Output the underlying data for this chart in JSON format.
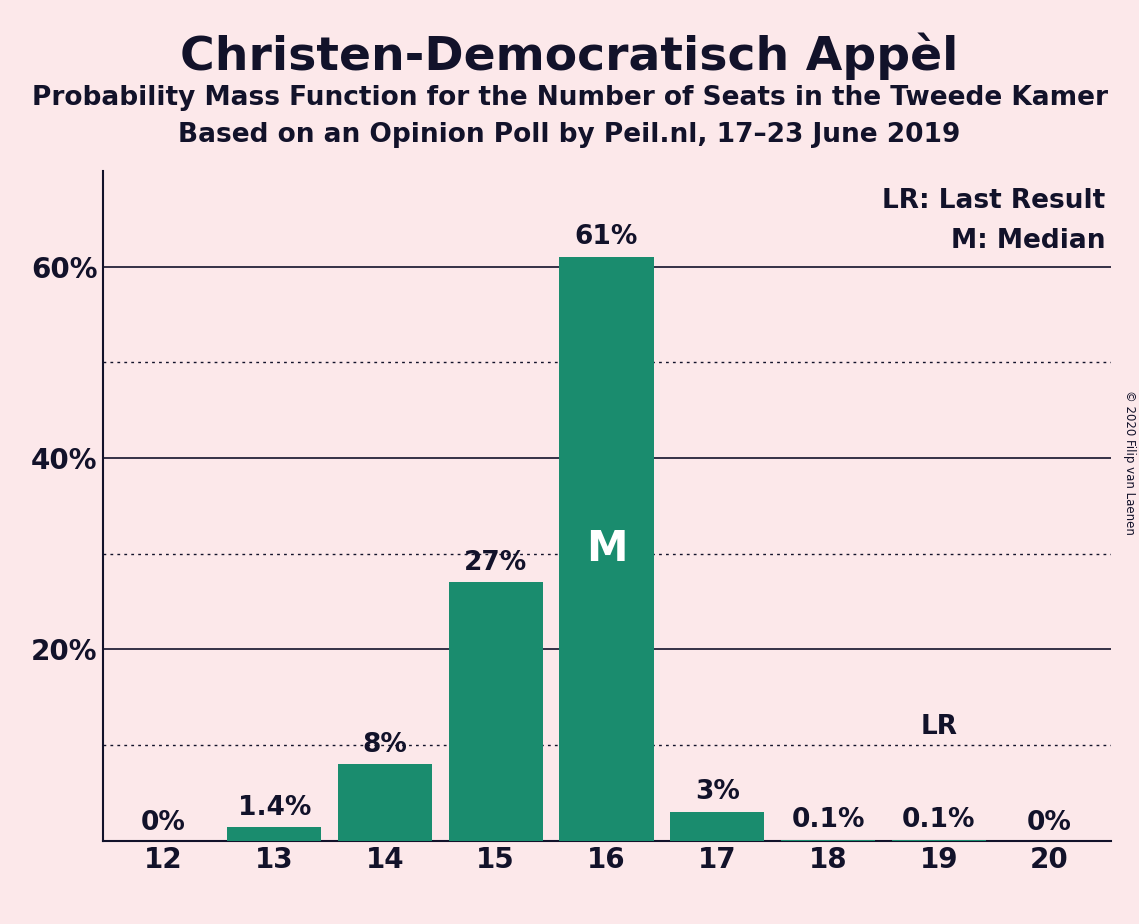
{
  "title": "Christen-Democratisch Appèl",
  "subtitle1": "Probability Mass Function for the Number of Seats in the Tweede Kamer",
  "subtitle2": "Based on an Opinion Poll by Peil.nl, 17–23 June 2019",
  "copyright": "© 2020 Filip van Laenen",
  "categories": [
    12,
    13,
    14,
    15,
    16,
    17,
    18,
    19,
    20
  ],
  "values": [
    0.0,
    1.4,
    8.0,
    27.0,
    61.0,
    3.0,
    0.1,
    0.1,
    0.0
  ],
  "labels": [
    "0%",
    "1.4%",
    "8%",
    "27%",
    "61%",
    "3%",
    "0.1%",
    "0.1%",
    "0%"
  ],
  "bar_color": "#1a8c6e",
  "background_color": "#fce8ea",
  "text_color": "#12122a",
  "median_seat": 16,
  "lr_seat": 19,
  "legend_lr": "LR: Last Result",
  "legend_m": "M: Median",
  "ylim": [
    0,
    70
  ],
  "solid_lines": [
    20,
    40,
    60
  ],
  "dotted_lines": [
    10,
    30,
    50
  ],
  "ytick_positions": [
    20,
    40,
    60
  ],
  "ytick_labels": [
    "20%",
    "40%",
    "60%"
  ],
  "title_fontsize": 34,
  "subtitle_fontsize": 19,
  "label_fontsize": 19,
  "tick_fontsize": 20,
  "legend_fontsize": 19,
  "m_fontsize": 30
}
